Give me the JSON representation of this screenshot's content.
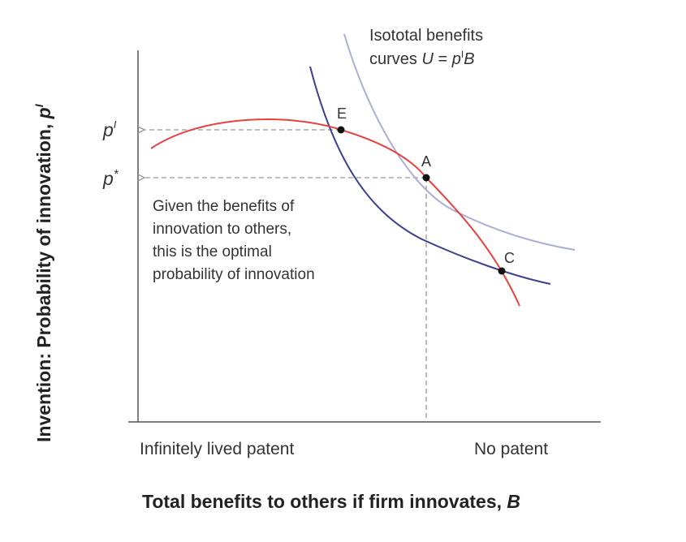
{
  "y_axis_label": {
    "main": "Invention: Probability of innovation, ",
    "var": "p",
    "sup": "I"
  },
  "x_axis_label": {
    "main": "Total benefits to others if firm innovates, ",
    "var": "B"
  },
  "x_ticks": {
    "left": "Infinitely lived patent",
    "right": "No patent"
  },
  "y_ticks": {
    "upper": {
      "var": "p",
      "sup": "I"
    },
    "lower": {
      "var": "p",
      "sup": "*"
    }
  },
  "points": {
    "E": "E",
    "A": "A",
    "C": "C"
  },
  "isototal_label": {
    "line1": "Isototal benefits",
    "line2_prefix": "curves ",
    "line2_U": "U",
    "line2_eq": " = ",
    "line2_p": "p",
    "line2_sup": "I",
    "line2_B": "B"
  },
  "annotation": [
    "Given the benefits of",
    "innovation to others,",
    "this is the optimal",
    "probability of innovation"
  ],
  "colors": {
    "red_curve": "#e8423f",
    "dark_blue_curve": "#3a3f8f",
    "light_blue_curve": "#a9afd6",
    "axis": "#555555",
    "dashed": "#999999"
  }
}
